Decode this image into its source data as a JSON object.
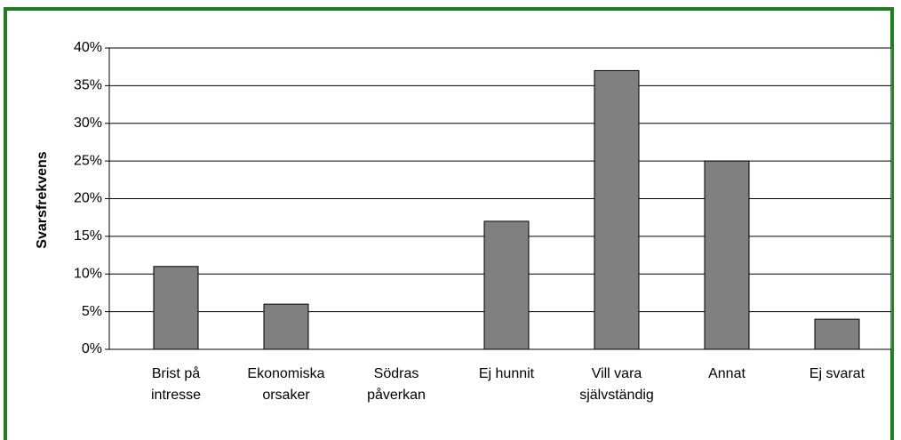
{
  "chart_data": {
    "type": "bar",
    "y_label": "Svarsfrekvens",
    "categories": [
      "Brist på intresse",
      "Ekonomiska orsaker",
      "Södras påverkan",
      "Ej hunnit",
      "Vill vara självständig",
      "Annat",
      "Ej svarat"
    ],
    "values": [
      11,
      6,
      0,
      17,
      37,
      25,
      4
    ],
    "color": "#808080",
    "ylim": [
      0,
      40
    ],
    "yticks": [
      {
        "value": 0,
        "label": "0%"
      },
      {
        "value": 5,
        "label": "5%"
      },
      {
        "value": 10,
        "label": "10%"
      },
      {
        "value": 15,
        "label": "15%"
      },
      {
        "value": 20,
        "label": "20%"
      },
      {
        "value": 25,
        "label": "25%"
      },
      {
        "value": 30,
        "label": "30%"
      },
      {
        "value": 35,
        "label": "35%"
      },
      {
        "value": 40,
        "label": "40%"
      }
    ],
    "grid": true
  }
}
